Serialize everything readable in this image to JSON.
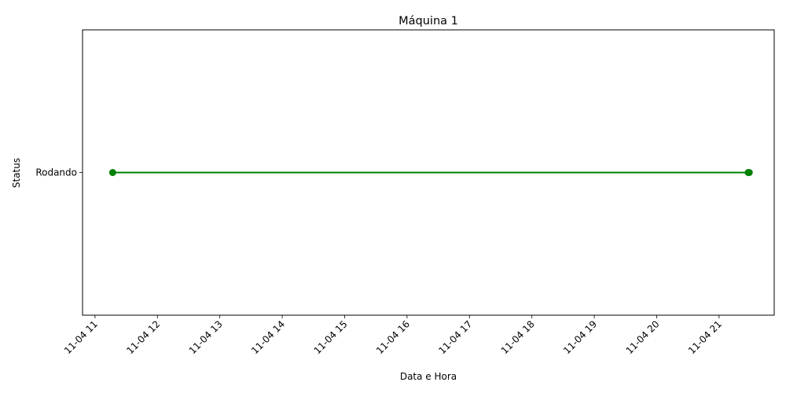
{
  "chart_data": {
    "type": "line",
    "title": "Máquina 1",
    "xlabel": "Data e Hora",
    "ylabel": "Status",
    "x_tick_labels": [
      "11-04 11",
      "11-04 12",
      "11-04 13",
      "11-04 14",
      "11-04 15",
      "11-04 16",
      "11-04 17",
      "11-04 18",
      "11-04 19",
      "11-04 20",
      "11-04 21"
    ],
    "y_categories": [
      "Rodando"
    ],
    "xlim": [
      "11-04 10:48",
      "11-04 21:53"
    ],
    "grid": false,
    "legend": "none",
    "series": [
      {
        "color": "#008000",
        "marker": "circle",
        "points": [
          {
            "x": "11-04 11:17",
            "y": "Rodando"
          },
          {
            "x": "11-04 21:28",
            "y": "Rodando"
          },
          {
            "x": "11-04 21:29",
            "y": "Rodando"
          }
        ]
      }
    ]
  }
}
